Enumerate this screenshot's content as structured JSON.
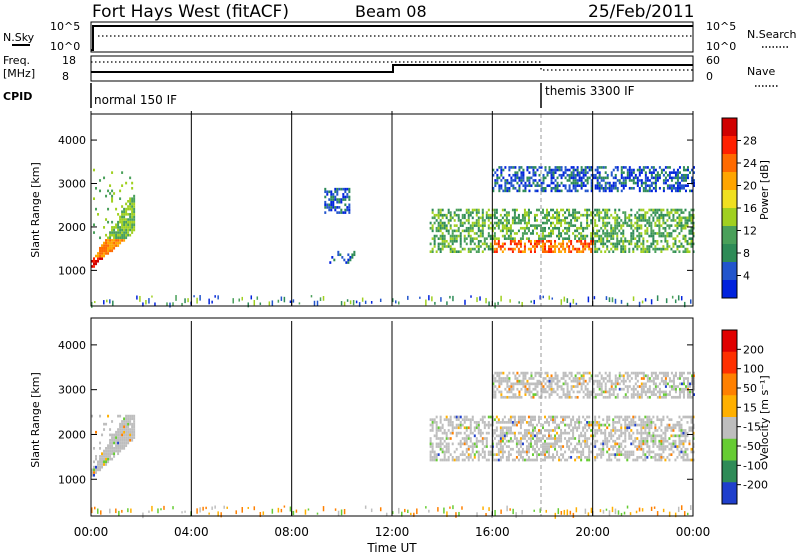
{
  "header": {
    "station": "Fort Hays West (fitACF)",
    "beam": "Beam 08",
    "date": "25/Feb/2011"
  },
  "top_panels": {
    "nsky_label": "N.Sky",
    "nsky_ticks": [
      "10^5",
      "10^0"
    ],
    "nsearch_label": "N.Search",
    "nsearch_ticks": [
      "10^5",
      "10^0"
    ],
    "freq_label": "Freq.",
    "freq_unit": "[MHz]",
    "freq_ticks": [
      "18",
      "8"
    ],
    "nave_label": "Nave",
    "nave_ticks": [
      "60",
      "0"
    ],
    "cpid_label": "CPID",
    "cpid_segments": [
      {
        "name": "normal 150 IF",
        "start_hour": 0
      },
      {
        "name": "themis 3300 IF",
        "start_hour": 18
      }
    ]
  },
  "time_axis": {
    "label": "Time UT",
    "ticks": [
      "00:00",
      "04:00",
      "08:00",
      "12:00",
      "16:00",
      "20:00",
      "00:00"
    ]
  },
  "chart_data": [
    {
      "type": "heatmap",
      "title": "",
      "xlabel": "Time UT",
      "ylabel": "Slant Range [km]",
      "xlim_hours": [
        0,
        24
      ],
      "ylim": [
        180,
        4600
      ],
      "yticks": [
        "1000",
        "2000",
        "3000",
        "4000"
      ],
      "colorbar": {
        "label": "Power [dB]",
        "ticks": [
          "28",
          "24",
          "20",
          "16",
          "12",
          "8",
          "4"
        ],
        "colors": [
          "#0022dd",
          "#2255cc",
          "#2e8b57",
          "#4aa05a",
          "#a0d020",
          "#f0e020",
          "#ffa500",
          "#ff6a00",
          "#ff2000",
          "#d00000"
        ]
      },
      "regions": [
        {
          "t0": 0.0,
          "t1": 1.7,
          "r0": 1000,
          "r1": 3300,
          "level": "high, rising range"
        },
        {
          "t0": 9.3,
          "t1": 10.3,
          "r0": 2300,
          "r1": 2900,
          "level": "low"
        },
        {
          "t0": 9.5,
          "t1": 10.5,
          "r0": 1150,
          "r1": 1400,
          "level": "low"
        },
        {
          "t0": 13.5,
          "t1": 24.0,
          "r0": 1400,
          "r1": 2400,
          "level": "moderate to high"
        },
        {
          "t0": 16.0,
          "t1": 24.0,
          "r0": 2800,
          "r1": 3400,
          "level": "low to moderate"
        }
      ]
    },
    {
      "type": "heatmap",
      "title": "",
      "xlabel": "Time UT",
      "ylabel": "Slant Range [km]",
      "xlim_hours": [
        0,
        24
      ],
      "ylim": [
        180,
        4600
      ],
      "yticks": [
        "1000",
        "2000",
        "3000",
        "4000"
      ],
      "colorbar": {
        "label": "Velocity [m s⁻¹]",
        "ticks": [
          "200",
          "100",
          "50",
          "15",
          "-15",
          "-50",
          "-100",
          "-200"
        ],
        "colors": [
          "#1f3fcc",
          "#2e8b57",
          "#66cc33",
          "#bebebe",
          "#ffb000",
          "#ff8000",
          "#ff3000",
          "#e00000"
        ]
      },
      "regions": [
        {
          "t0": 0.0,
          "t1": 1.7,
          "r0": 1000,
          "r1": 2400,
          "velocity": "near zero (ground scatter)"
        },
        {
          "t0": 13.5,
          "t1": 24.0,
          "r0": 1400,
          "r1": 2400,
          "velocity": "near zero (ground scatter)"
        },
        {
          "t0": 16.0,
          "t1": 24.0,
          "r0": 2800,
          "r1": 3400,
          "velocity": "near zero with scattered positive and negative values"
        }
      ]
    }
  ]
}
